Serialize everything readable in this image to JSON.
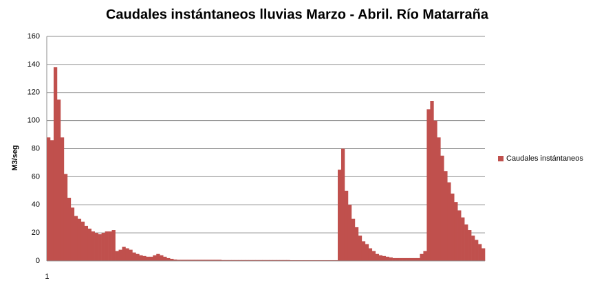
{
  "chart_data": {
    "type": "bar",
    "title": "Caudales instántaneos lluvias Marzo - Abril. Río Matarraña",
    "y_label": "M3/seg",
    "categories": [
      "1",
      null,
      null,
      null,
      null,
      null,
      null,
      null,
      null,
      null,
      null,
      null,
      null,
      null,
      null,
      null,
      null,
      null,
      null,
      null,
      null,
      null,
      null,
      null,
      null,
      null,
      null,
      null,
      null,
      null,
      null,
      null,
      null,
      null,
      null,
      null,
      null,
      null,
      null,
      null,
      null,
      null,
      null,
      null,
      null,
      null,
      null,
      null,
      null,
      null,
      null,
      null,
      null,
      null,
      null,
      null,
      null,
      null,
      null,
      null,
      null,
      null,
      null,
      null,
      null,
      null,
      null,
      null,
      null,
      null,
      null,
      null,
      null,
      null,
      null,
      null,
      null,
      null,
      null,
      null,
      null,
      null,
      null,
      null,
      null,
      null,
      null,
      null,
      null,
      null,
      null,
      null,
      null,
      null,
      null,
      null,
      null,
      null,
      null,
      null,
      null,
      null,
      null,
      null,
      null,
      null,
      null,
      null,
      null,
      null,
      null,
      null,
      null,
      null,
      null,
      null,
      null,
      null,
      null,
      null,
      null,
      null,
      null,
      null,
      null,
      null,
      null,
      null
    ],
    "series": [
      {
        "name": "Caudales instántaneos",
        "color": "#c0504d",
        "values": [
          88,
          86,
          138,
          115,
          88,
          62,
          45,
          38,
          32,
          30,
          28,
          25,
          23,
          21,
          20,
          19,
          20,
          21,
          21,
          22,
          7,
          8,
          10,
          9,
          8,
          6,
          5,
          4,
          3.5,
          3,
          3,
          4,
          5,
          4,
          3,
          2,
          1.5,
          1,
          0.8,
          0.8,
          0.8,
          0.8,
          0.8,
          0.8,
          0.8,
          0.8,
          0.8,
          0.8,
          0.8,
          0.8,
          0.8,
          0.6,
          0.6,
          0.6,
          0.6,
          0.6,
          0.6,
          0.6,
          0.6,
          0.6,
          0.6,
          0.6,
          0.6,
          0.6,
          0.6,
          0.6,
          0.6,
          0.6,
          0.6,
          0.6,
          0.6,
          0.5,
          0.5,
          0.5,
          0.5,
          0.5,
          0.5,
          0.5,
          0.5,
          0.5,
          0.5,
          0.5,
          0.5,
          0.5,
          0.5,
          65,
          80,
          50,
          40,
          30,
          24,
          18,
          14,
          12,
          9,
          7,
          5,
          4,
          3.5,
          3,
          2.5,
          2,
          2,
          2,
          2,
          2,
          2,
          2,
          2,
          5,
          7,
          108,
          114,
          100,
          88,
          75,
          64,
          56,
          48,
          42,
          36,
          31,
          26,
          22,
          18,
          15,
          12,
          9
        ]
      }
    ],
    "ylim": [
      0,
      160
    ],
    "yticks": [
      0,
      20,
      40,
      60,
      80,
      100,
      120,
      140,
      160
    ],
    "grid": true,
    "legend": "right"
  }
}
